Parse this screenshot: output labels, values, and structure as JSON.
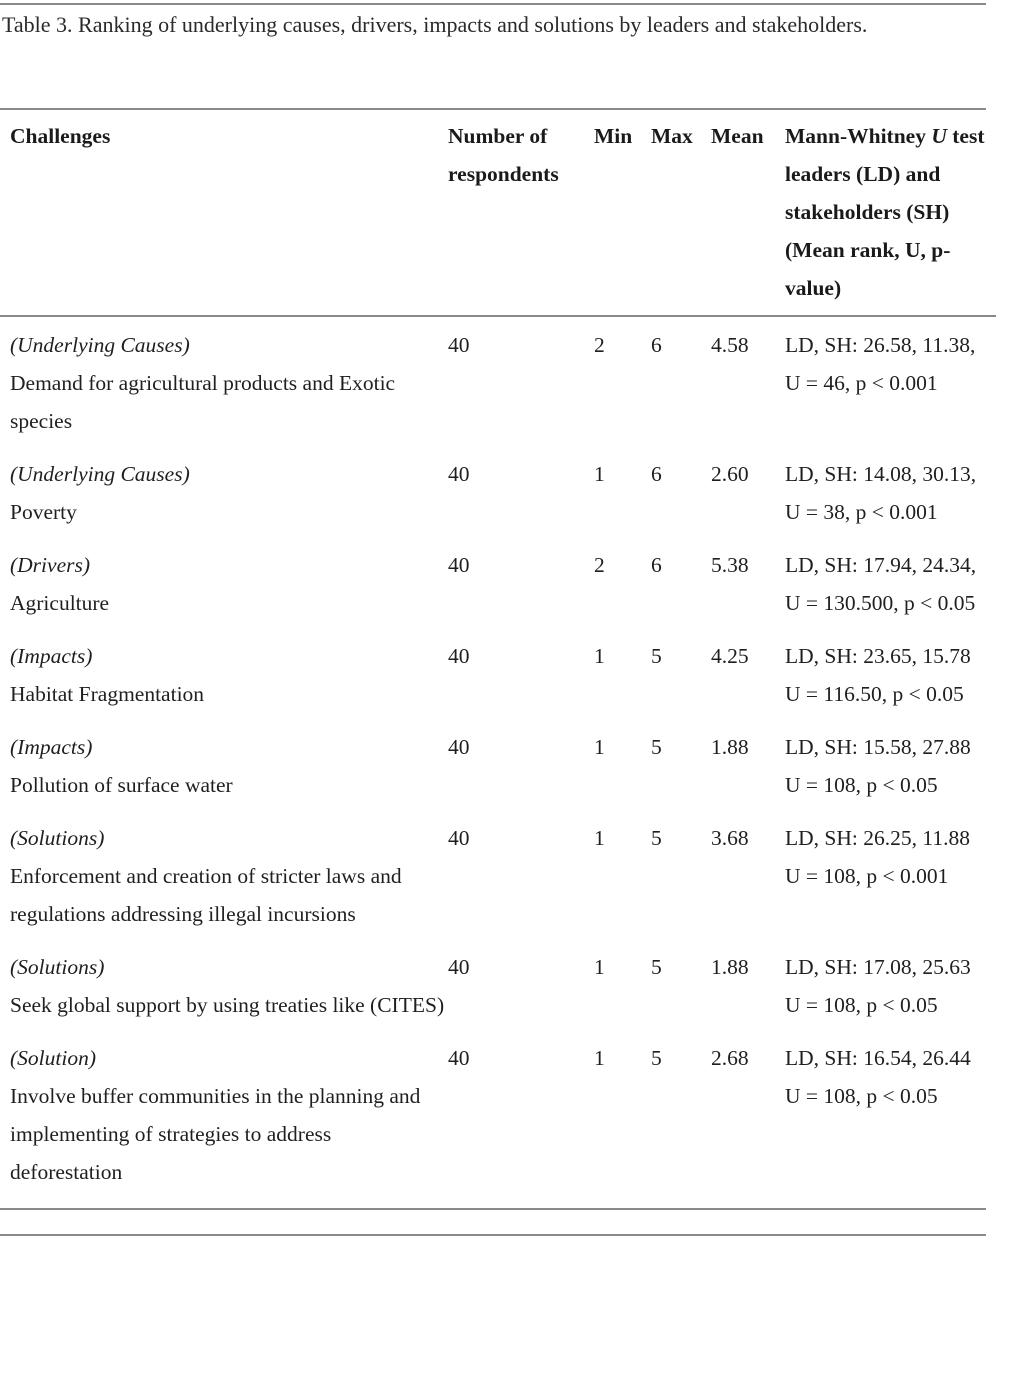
{
  "caption": "Table 3. Ranking of underlying causes, drivers, impacts and solutions by leaders and stakeholders.",
  "headers": {
    "challenges": "Challenges",
    "respondents": "Number of respondents",
    "min": "Min",
    "max": "Max",
    "mean": "Mean",
    "mw_prefix": "Mann-Whitney ",
    "mw_italic": "U",
    "mw_suffix": " test leaders (LD) and stakeholders (SH) (Mean rank, U, p-value)"
  },
  "rows": [
    {
      "category": "(Underlying Causes)",
      "challenge": "Demand for agricultural products and Exotic species",
      "respondents": "40",
      "min": "2",
      "max": "6",
      "mean": "4.58",
      "stats_line1": "LD, SH: 26.58, 11.38,",
      "stats_line2": "U = 46, p < 0.001"
    },
    {
      "category": "(Underlying Causes)",
      "challenge": "Poverty",
      "respondents": "40",
      "min": "1",
      "max": "6",
      "mean": "2.60",
      "stats_line1": "LD, SH: 14.08, 30.13,",
      "stats_line2": "U = 38, p < 0.001"
    },
    {
      "category": "(Drivers)",
      "challenge": "Agriculture",
      "respondents": "40",
      "min": "2",
      "max": "6",
      "mean": "5.38",
      "stats_line1": "LD, SH: 17.94, 24.34,",
      "stats_line2": "U = 130.500, p < 0.05"
    },
    {
      "category": "(Impacts)",
      "challenge": "Habitat Fragmentation",
      "respondents": "40",
      "min": "1",
      "max": "5",
      "mean": "4.25",
      "stats_line1": "LD, SH: 23.65, 15.78",
      "stats_line2": "U = 116.50, p < 0.05"
    },
    {
      "category": "(Impacts)",
      "challenge": "Pollution of surface water",
      "respondents": "40",
      "min": "1",
      "max": "5",
      "mean": "1.88",
      "stats_line1": "LD, SH: 15.58, 27.88",
      "stats_line2": "U = 108, p < 0.05"
    },
    {
      "category": "(Solutions)",
      "challenge": "Enforcement and creation of stricter laws and regulations addressing illegal incursions",
      "respondents": "40",
      "min": "1",
      "max": "5",
      "mean": "3.68",
      "stats_line1": "LD, SH: 26.25, 11.88",
      "stats_line2": "U = 108, p < 0.001"
    },
    {
      "category": "(Solutions)",
      "challenge": "Seek global support by using treaties like (CITES)",
      "respondents": "40",
      "min": "1",
      "max": "5",
      "mean": "1.88",
      "stats_line1": "LD, SH: 17.08, 25.63",
      "stats_line2": "U = 108, p < 0.05"
    },
    {
      "category": "(Solution)",
      "challenge": "Involve buffer communities in the planning and implementing of strategies to address deforestation",
      "respondents": "40",
      "min": "1",
      "max": "5",
      "mean": "2.68",
      "stats_line1": "LD, SH: 16.54, 26.44",
      "stats_line2": "U = 108, p < 0.05"
    }
  ]
}
